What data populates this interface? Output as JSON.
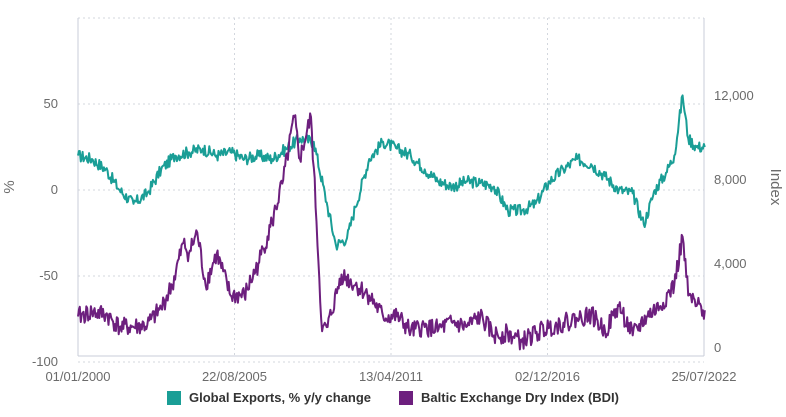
{
  "chart_data": {
    "type": "line",
    "title": "",
    "x_ticks": [
      "01/01/2000",
      "22/08/2005",
      "13/04/2011",
      "02/12/2016",
      "25/07/2022"
    ],
    "x_range": [
      "2000-01-01",
      "2022-07-25"
    ],
    "y_left": {
      "label": "%",
      "range": [
        -100,
        100
      ],
      "ticks": [
        "50",
        "0",
        "-50",
        "-100"
      ],
      "tick_values": [
        50,
        0,
        -50,
        -100
      ]
    },
    "y_right": {
      "label": "Index",
      "range": [
        0,
        16000
      ],
      "ticks": [
        "12,000",
        "8,000",
        "4,000",
        "0"
      ],
      "tick_values": [
        12000,
        8000,
        4000,
        0
      ]
    },
    "grid": true,
    "legend_position": "bottom",
    "series": [
      {
        "name": "Global Exports, % y/y change",
        "axis": "left",
        "color": "#1a9e96",
        "x": [
          2000.0,
          2000.5,
          2001.0,
          2001.5,
          2002.0,
          2002.5,
          2003.0,
          2003.5,
          2004.0,
          2004.5,
          2005.0,
          2005.5,
          2006.0,
          2006.5,
          2007.0,
          2007.5,
          2008.0,
          2008.5,
          2009.0,
          2009.3,
          2009.7,
          2010.0,
          2010.5,
          2011.0,
          2011.5,
          2012.0,
          2012.5,
          2013.0,
          2013.5,
          2014.0,
          2014.5,
          2015.0,
          2015.5,
          2016.0,
          2016.5,
          2017.0,
          2017.5,
          2018.0,
          2018.5,
          2019.0,
          2019.5,
          2020.0,
          2020.4,
          2020.8,
          2021.2,
          2021.5,
          2021.8,
          2022.0,
          2022.3,
          2022.6
        ],
        "values": [
          20,
          18,
          12,
          0,
          -8,
          -2,
          12,
          20,
          22,
          24,
          20,
          22,
          18,
          20,
          18,
          24,
          30,
          28,
          -10,
          -32,
          -28,
          -10,
          18,
          28,
          24,
          20,
          12,
          5,
          2,
          5,
          4,
          2,
          -12,
          -12,
          -8,
          5,
          12,
          18,
          15,
          8,
          0,
          -2,
          -20,
          0,
          10,
          20,
          55,
          30,
          25,
          25
        ]
      },
      {
        "name": "Baltic Exchange Dry Index (BDI)",
        "axis": "right",
        "color": "#6d1f7e",
        "x": [
          2000.0,
          2000.5,
          2001.0,
          2001.5,
          2002.0,
          2002.5,
          2003.0,
          2003.4,
          2003.8,
          2004.0,
          2004.3,
          2004.6,
          2005.0,
          2005.5,
          2006.0,
          2006.5,
          2007.0,
          2007.4,
          2007.8,
          2008.0,
          2008.4,
          2008.6,
          2008.8,
          2009.0,
          2009.5,
          2010.0,
          2010.5,
          2011.0,
          2011.5,
          2012.0,
          2012.5,
          2013.0,
          2013.5,
          2014.0,
          2014.5,
          2015.0,
          2015.5,
          2016.0,
          2016.5,
          2017.0,
          2017.5,
          2018.0,
          2018.5,
          2019.0,
          2019.5,
          2020.0,
          2020.5,
          2021.0,
          2021.5,
          2021.8,
          2022.0,
          2022.3,
          2022.6
        ],
        "values": [
          1500,
          1700,
          1600,
          1000,
          1000,
          1100,
          1900,
          3000,
          5000,
          4500,
          5500,
          3000,
          4500,
          2500,
          2500,
          4000,
          6000,
          8000,
          11000,
          9000,
          11000,
          6000,
          800,
          1000,
          3500,
          3000,
          2500,
          1500,
          1500,
          800,
          1000,
          900,
          1200,
          1000,
          1500,
          600,
          700,
          300,
          700,
          1000,
          1200,
          1400,
          1600,
          800,
          2000,
          600,
          1500,
          2000,
          3000,
          5300,
          2500,
          2000,
          1800
        ]
      }
    ]
  }
}
